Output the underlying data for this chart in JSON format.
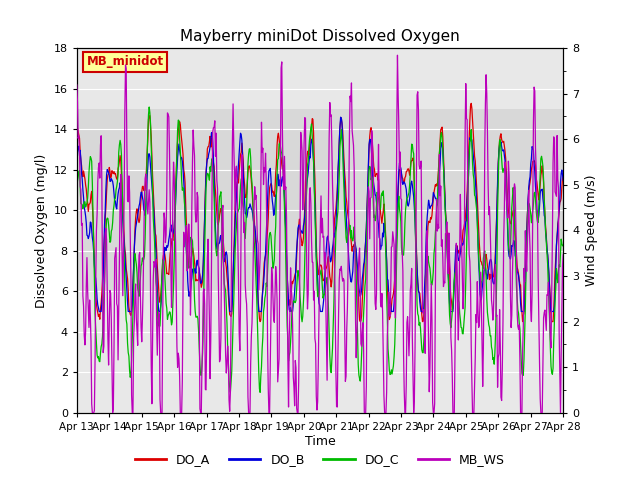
{
  "title": "Mayberry miniDot Dissolved Oxygen",
  "xlabel": "Time",
  "ylabel_left": "Dissolved Oxygen (mg/l)",
  "ylabel_right": "Wind Speed (m/s)",
  "legend_label": "MB_minidot",
  "legend_box_facecolor": "#ffff99",
  "legend_box_edgecolor": "#cc0000",
  "ylim_left": [
    0,
    18
  ],
  "ylim_right": [
    0.0,
    8.0
  ],
  "yticks_left": [
    0,
    2,
    4,
    6,
    8,
    10,
    12,
    14,
    16,
    18
  ],
  "yticks_right": [
    0.0,
    1.0,
    2.0,
    3.0,
    4.0,
    5.0,
    6.0,
    7.0,
    8.0
  ],
  "xticklabels": [
    "Apr 13",
    "Apr 14",
    "Apr 15",
    "Apr 16",
    "Apr 17",
    "Apr 18",
    "Apr 19",
    "Apr 20",
    "Apr 21",
    "Apr 22",
    "Apr 23",
    "Apr 24",
    "Apr 25",
    "Apr 26",
    "Apr 27",
    "Apr 28"
  ],
  "series_colors": {
    "DO_A": "#dd0000",
    "DO_B": "#0000dd",
    "DO_C": "#00bb00",
    "MB_WS": "#bb00bb"
  },
  "line_width": 0.9,
  "shaded_band": [
    6.0,
    15.0
  ],
  "background_color": "#ffffff",
  "plot_bg_color": "#e8e8e8",
  "grid_color": "#ffffff"
}
